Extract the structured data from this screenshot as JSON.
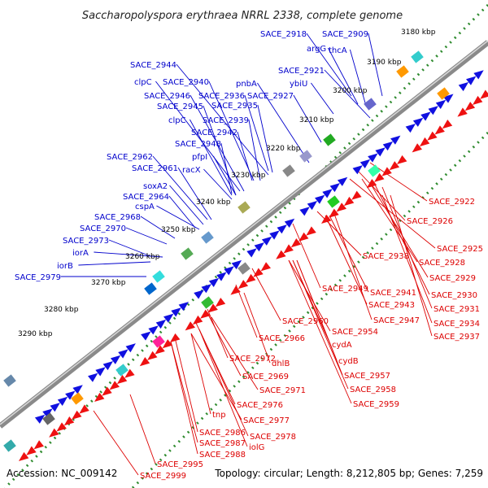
{
  "title": "Saccharopolyspora erythraea NRRL 2338, complete genome",
  "footer": {
    "accession": "Accession: NC_009142",
    "info": "Topology: circular; Length: 8,212,805 bp; Genes: 7,259"
  },
  "colors": {
    "forward_label": "#0000cc",
    "reverse_label": "#dd0000",
    "forward_gene": "#1010e0",
    "reverse_gene": "#ee1111",
    "backbone": "#808080",
    "dotted_ring": "#2e8b2e"
  },
  "kbp_ticks": [
    "3180 kbp",
    "3190 kbp",
    "3200 kbp",
    "3210 kbp",
    "3220 kbp",
    "3230 kbp",
    "3240 kbp",
    "3250 kbp",
    "3260 kbp",
    "3270 kbp",
    "3280 kbp",
    "3290 kbp"
  ],
  "forward_labels": [
    "SACE_2918",
    "SACE_2909",
    "argG",
    "thcA",
    "SACE_2944",
    "SACE_2921",
    "ybiU",
    "clpC",
    "SACE_2940",
    "pnbA",
    "SACE_2946",
    "SACE_2936",
    "SACE_2927",
    "SACE_2945",
    "SACE_2935",
    "clpC",
    "SACE_2939",
    "SACE_2942",
    "SACE_2948",
    "pfpI",
    "racX",
    "SACE_2962",
    "SACE_2961",
    "soxA2",
    "SACE_2964",
    "cspA",
    "SACE_2968",
    "SACE_2970",
    "SACE_2973",
    "iorA",
    "iorB",
    "SACE_2979"
  ],
  "reverse_labels": [
    "SACE_2922",
    "SACE_2926",
    "SACE_2925",
    "SACE_2928",
    "SACE_2938",
    "SACE_2929",
    "SACE_2930",
    "SACE_2949",
    "SACE_2941",
    "SACE_2931",
    "SACE_2943",
    "SACE_2947",
    "SACE_2934",
    "SACE_2960",
    "SACE_2954",
    "SACE_2937",
    "SACE_2966",
    "cydA",
    "dhlB",
    "cydB",
    "SACE_2972",
    "SACE_2969",
    "SACE_2957",
    "SACE_2971",
    "SACE_2958",
    "SACE_2976",
    "SACE_2959",
    "tnp",
    "SACE_2977",
    "SACE_2986",
    "SACE_2978",
    "SACE_2987",
    "iolG",
    "SACE_2988",
    "SACE_2995",
    "SACE_2999"
  ]
}
